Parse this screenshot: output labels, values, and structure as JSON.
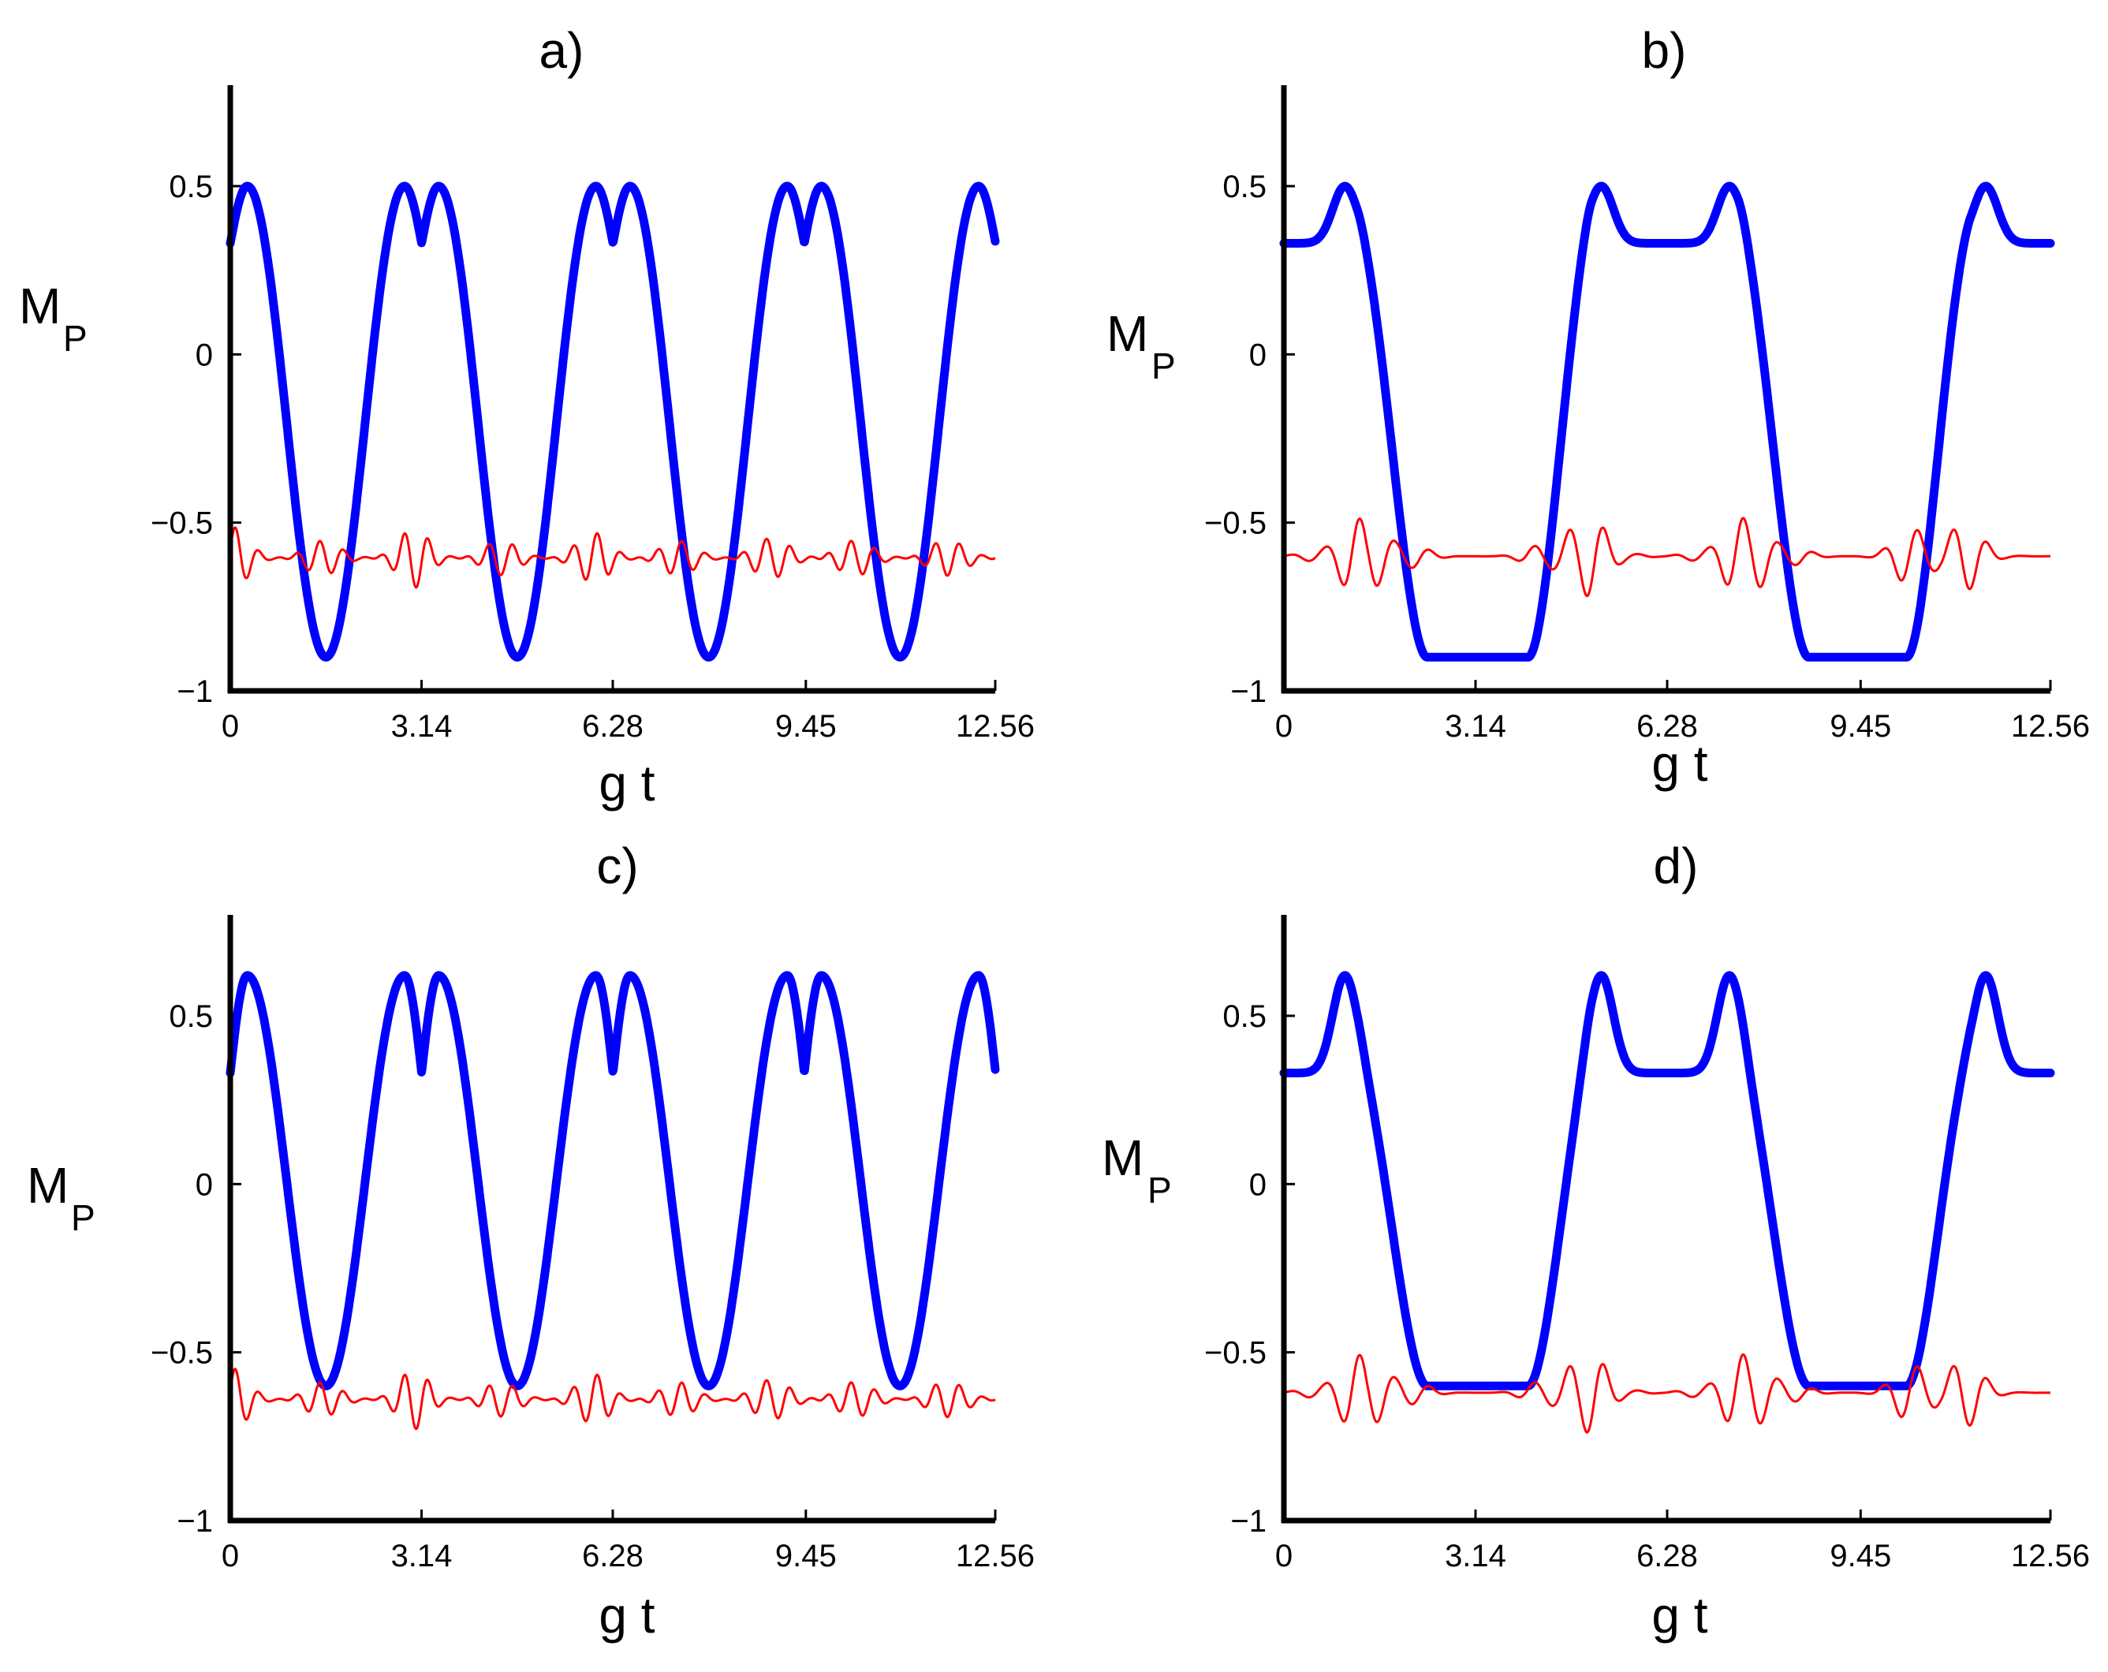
{
  "chart_data": [
    {
      "type": "line",
      "panel_id": "a",
      "title": "a)",
      "xlabel": "g t",
      "ylabel": {
        "main": "M",
        "sub": "P"
      },
      "xlim": [
        0,
        12.56
      ],
      "ylim": [
        -1,
        0.8
      ],
      "xticks": [
        0,
        3.14,
        6.28,
        9.45,
        12.56
      ],
      "xtick_labels": [
        "0",
        "3.14",
        "6.28",
        "9.45",
        "12.56"
      ],
      "yticks": [
        -1,
        -0.5,
        0,
        0.5
      ],
      "ytick_labels": [
        "−1",
        "−0.5",
        "0",
        "0.5"
      ],
      "grid": false,
      "series": [
        {
          "name": "blue-thick",
          "color": "#0000ff",
          "description": "Periodic oscillation, period π, between −0.9 and 0.5 with a double peak near t = kπ (dip to 0.33)",
          "x": [
            0,
            0.14,
            0.28,
            0.42,
            0.7,
            1.0,
            1.3,
            1.57,
            1.85,
            2.15,
            2.45,
            2.72,
            2.86,
            3.0,
            3.14
          ],
          "values": [
            0.33,
            0.45,
            0.5,
            0.46,
            0.14,
            -0.35,
            -0.75,
            -0.9,
            -0.75,
            -0.35,
            0.14,
            0.46,
            0.5,
            0.45,
            0.33
          ]
        },
        {
          "name": "red-thin",
          "color": "#ff0000",
          "description": "Fast small oscillation around −0.6 between −0.74 and −0.5, larger bursts near t = kπ",
          "x": [
            0,
            3.14,
            6.28,
            9.42,
            12.56
          ],
          "values": [
            -0.55,
            -0.6,
            -0.6,
            -0.6,
            -0.6
          ],
          "range": [
            -0.74,
            -0.5
          ]
        }
      ]
    },
    {
      "type": "line",
      "panel_id": "b",
      "title": "b)",
      "xlabel": "g t",
      "ylabel": {
        "main": "M",
        "sub": "P"
      },
      "xlim": [
        0,
        12.56
      ],
      "ylim": [
        -1,
        0.8
      ],
      "xticks": [
        0,
        3.14,
        6.28,
        9.45,
        12.56
      ],
      "xtick_labels": [
        "0",
        "3.14",
        "6.28",
        "9.45",
        "12.56"
      ],
      "yticks": [
        -1,
        -0.5,
        0,
        0.5
      ],
      "ytick_labels": [
        "−1",
        "−0.5",
        "0",
        "0.5"
      ],
      "grid": false,
      "series": [
        {
          "name": "blue-thick",
          "color": "#0000ff",
          "description": "Plateaus at 0.33 and −0.9 with peaks of 0.5 at t ≈ 1.0, 5.2, 7.3, 11.5 and transitions near 1.7, 4.65, 7.85, 10.8",
          "x": [
            0,
            0.6,
            1.0,
            1.4,
            1.7,
            2.1,
            2.6,
            3.14,
            3.7,
            4.3,
            4.65,
            5.0,
            5.2,
            5.6,
            6.28,
            6.9,
            7.3,
            7.6,
            7.85,
            8.2,
            8.6,
            9.42,
            10.2,
            10.5,
            10.8,
            11.2,
            11.5,
            11.9,
            12.56
          ],
          "values": [
            0.33,
            0.36,
            0.5,
            0.3,
            -0.2,
            -0.78,
            -0.9,
            -0.9,
            -0.9,
            -0.6,
            -0.1,
            0.35,
            0.5,
            0.36,
            0.33,
            0.36,
            0.5,
            0.3,
            -0.1,
            -0.6,
            -0.88,
            -0.9,
            -0.88,
            -0.6,
            -0.1,
            0.35,
            0.5,
            0.36,
            0.33
          ]
        },
        {
          "name": "red-thin",
          "color": "#ff0000",
          "description": "Flat near −0.6 during plateaus, oscillating bursts between −0.74 and −0.5 at the transitions",
          "x": [
            0,
            3.14,
            6.28,
            9.42,
            12.56
          ],
          "values": [
            -0.61,
            -0.6,
            -0.58,
            -0.6,
            -0.61
          ],
          "range": [
            -0.74,
            -0.5
          ]
        }
      ]
    },
    {
      "type": "line",
      "panel_id": "c",
      "title": "c)",
      "xlabel": "g t",
      "ylabel": {
        "main": "M",
        "sub": "P"
      },
      "xlim": [
        0,
        12.56
      ],
      "ylim": [
        -1,
        0.8
      ],
      "xticks": [
        0,
        3.14,
        6.28,
        9.45,
        12.56
      ],
      "xtick_labels": [
        "0",
        "3.14",
        "6.28",
        "9.45",
        "12.56"
      ],
      "yticks": [
        -1,
        -0.5,
        0,
        0.5
      ],
      "ytick_labels": [
        "−1",
        "−0.5",
        "0",
        "0.5"
      ],
      "grid": false,
      "series": [
        {
          "name": "blue-thick",
          "color": "#0000ff",
          "description": "Periodic oscillation, period π, between −0.6 and 0.62 with double peak near t = kπ (dip to 0.33)",
          "x": [
            0,
            0.14,
            0.28,
            0.42,
            0.7,
            1.0,
            1.3,
            1.57,
            1.85,
            2.15,
            2.45,
            2.72,
            2.86,
            3.0,
            3.14
          ],
          "values": [
            0.33,
            0.55,
            0.62,
            0.56,
            0.25,
            -0.2,
            -0.5,
            -0.6,
            -0.5,
            -0.2,
            0.25,
            0.56,
            0.62,
            0.55,
            0.33
          ]
        },
        {
          "name": "red-thin",
          "color": "#ff0000",
          "description": "Fast small oscillation around −0.64 between −0.76 and −0.53",
          "x": [
            0,
            3.14,
            6.28,
            9.42,
            12.56
          ],
          "values": [
            -0.58,
            -0.64,
            -0.64,
            -0.64,
            -0.64
          ],
          "range": [
            -0.76,
            -0.53
          ]
        }
      ]
    },
    {
      "type": "line",
      "panel_id": "d",
      "title": "d)",
      "xlabel": "g t",
      "ylabel": {
        "main": "M",
        "sub": "P"
      },
      "xlim": [
        0,
        12.56
      ],
      "ylim": [
        -1,
        0.8
      ],
      "xticks": [
        0,
        3.14,
        6.28,
        9.45,
        12.56
      ],
      "xtick_labels": [
        "0",
        "3.14",
        "6.28",
        "9.45",
        "12.56"
      ],
      "yticks": [
        -1,
        -0.5,
        0,
        0.5
      ],
      "ytick_labels": [
        "−1",
        "−0.5",
        "0",
        "0.5"
      ],
      "grid": false,
      "series": [
        {
          "name": "blue-thick",
          "color": "#0000ff",
          "description": "Plateaus at 0.33 and −0.6 with peaks of 0.62 at t ≈ 1.0, 5.2, 7.3, 11.5",
          "x": [
            0,
            0.6,
            1.0,
            1.4,
            1.7,
            2.1,
            2.6,
            3.14,
            3.7,
            4.3,
            4.65,
            5.0,
            5.2,
            5.6,
            6.28,
            6.9,
            7.3,
            7.6,
            7.85,
            8.2,
            8.6,
            9.42,
            10.2,
            10.5,
            10.8,
            11.2,
            11.5,
            11.9,
            12.56
          ],
          "values": [
            0.33,
            0.38,
            0.62,
            0.33,
            -0.05,
            -0.5,
            -0.6,
            -0.6,
            -0.6,
            -0.42,
            -0.02,
            0.45,
            0.62,
            0.38,
            0.33,
            0.38,
            0.62,
            0.33,
            -0.02,
            -0.42,
            -0.59,
            -0.6,
            -0.59,
            -0.42,
            -0.02,
            0.45,
            0.62,
            0.38,
            0.33
          ]
        },
        {
          "name": "red-thin",
          "color": "#ff0000",
          "description": "Flat near −0.61 during plateaus, oscillating bursts between −0.76 and −0.53 at the transitions",
          "x": [
            0,
            3.14,
            6.28,
            9.42,
            12.56
          ],
          "values": [
            -0.65,
            -0.6,
            -0.6,
            -0.6,
            -0.65
          ],
          "range": [
            -0.76,
            -0.53
          ]
        }
      ]
    }
  ]
}
